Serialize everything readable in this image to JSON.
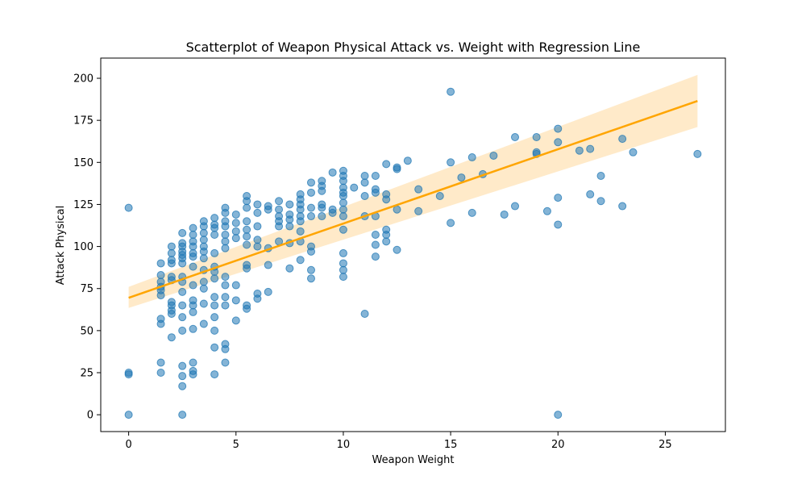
{
  "chart_data": {
    "type": "scatter",
    "title": "Scatterplot of Weapon Physical Attack vs. Weight with Regression Line",
    "xlabel": "Weapon Weight",
    "ylabel": "Attack Physical",
    "xlim": [
      -1.3,
      27.8
    ],
    "ylim": [
      -10,
      212
    ],
    "xticks": [
      0,
      5,
      10,
      15,
      20,
      25
    ],
    "yticks": [
      0,
      25,
      50,
      75,
      100,
      125,
      150,
      175,
      200
    ],
    "grid": false,
    "colors": {
      "points": "#1f77b4",
      "regression": "#ffa500",
      "band": "#ffe6bf"
    },
    "regression": {
      "x": [
        0,
        26.5
      ],
      "y": [
        69.5,
        186.5
      ],
      "ci_lower": [
        63.5,
        171
      ],
      "ci_upper": [
        76,
        202
      ]
    },
    "points": [
      [
        0,
        123
      ],
      [
        0,
        25
      ],
      [
        0,
        24
      ],
      [
        0,
        0
      ],
      [
        1.5,
        90
      ],
      [
        1.5,
        83
      ],
      [
        1.5,
        79
      ],
      [
        1.5,
        76
      ],
      [
        1.5,
        74
      ],
      [
        1.5,
        71
      ],
      [
        1.5,
        57
      ],
      [
        1.5,
        54
      ],
      [
        1.5,
        31
      ],
      [
        1.5,
        25
      ],
      [
        2,
        100
      ],
      [
        2,
        96
      ],
      [
        2,
        92
      ],
      [
        2,
        90
      ],
      [
        2,
        82
      ],
      [
        2,
        80
      ],
      [
        2,
        67
      ],
      [
        2,
        65
      ],
      [
        2,
        62
      ],
      [
        2,
        60
      ],
      [
        2,
        46
      ],
      [
        2.5,
        108
      ],
      [
        2.5,
        102
      ],
      [
        2.5,
        100
      ],
      [
        2.5,
        97
      ],
      [
        2.5,
        95
      ],
      [
        2.5,
        93
      ],
      [
        2.5,
        90
      ],
      [
        2.5,
        82
      ],
      [
        2.5,
        79
      ],
      [
        2.5,
        73
      ],
      [
        2.5,
        65
      ],
      [
        2.5,
        58
      ],
      [
        2.5,
        50
      ],
      [
        2.5,
        29
      ],
      [
        2.5,
        23
      ],
      [
        2.5,
        17
      ],
      [
        2.5,
        0
      ],
      [
        3,
        111
      ],
      [
        3,
        107
      ],
      [
        3,
        103
      ],
      [
        3,
        100
      ],
      [
        3,
        96
      ],
      [
        3,
        94
      ],
      [
        3,
        88
      ],
      [
        3,
        77
      ],
      [
        3,
        68
      ],
      [
        3,
        65
      ],
      [
        3,
        61
      ],
      [
        3,
        51
      ],
      [
        3,
        31
      ],
      [
        3,
        26
      ],
      [
        3,
        24
      ],
      [
        3.5,
        115
      ],
      [
        3.5,
        112
      ],
      [
        3.5,
        108
      ],
      [
        3.5,
        104
      ],
      [
        3.5,
        100
      ],
      [
        3.5,
        97
      ],
      [
        3.5,
        93
      ],
      [
        3.5,
        86
      ],
      [
        3.5,
        79
      ],
      [
        3.5,
        75
      ],
      [
        3.5,
        66
      ],
      [
        3.5,
        54
      ],
      [
        4,
        117
      ],
      [
        4,
        113
      ],
      [
        4,
        111
      ],
      [
        4,
        107
      ],
      [
        4,
        96
      ],
      [
        4,
        88
      ],
      [
        4,
        85
      ],
      [
        4,
        81
      ],
      [
        4,
        70
      ],
      [
        4,
        65
      ],
      [
        4,
        58
      ],
      [
        4,
        50
      ],
      [
        4,
        40
      ],
      [
        4,
        24
      ],
      [
        4.5,
        123
      ],
      [
        4.5,
        120
      ],
      [
        4.5,
        115
      ],
      [
        4.5,
        112
      ],
      [
        4.5,
        107
      ],
      [
        4.5,
        103
      ],
      [
        4.5,
        99
      ],
      [
        4.5,
        82
      ],
      [
        4.5,
        77
      ],
      [
        4.5,
        70
      ],
      [
        4.5,
        65
      ],
      [
        4.5,
        42
      ],
      [
        4.5,
        39
      ],
      [
        4.5,
        31
      ],
      [
        5,
        119
      ],
      [
        5,
        114
      ],
      [
        5,
        109
      ],
      [
        5,
        105
      ],
      [
        5,
        77
      ],
      [
        5,
        68
      ],
      [
        5,
        56
      ],
      [
        5.5,
        130
      ],
      [
        5.5,
        127
      ],
      [
        5.5,
        123
      ],
      [
        5.5,
        115
      ],
      [
        5.5,
        110
      ],
      [
        5.5,
        106
      ],
      [
        5.5,
        101
      ],
      [
        5.5,
        89
      ],
      [
        5.5,
        87
      ],
      [
        5.5,
        65
      ],
      [
        5.5,
        63
      ],
      [
        6,
        125
      ],
      [
        6,
        120
      ],
      [
        6,
        112
      ],
      [
        6,
        104
      ],
      [
        6,
        100
      ],
      [
        6,
        72
      ],
      [
        6,
        69
      ],
      [
        6.5,
        124
      ],
      [
        6.5,
        122
      ],
      [
        6.5,
        99
      ],
      [
        6.5,
        89
      ],
      [
        6.5,
        73
      ],
      [
        7,
        127
      ],
      [
        7,
        122
      ],
      [
        7,
        118
      ],
      [
        7,
        115
      ],
      [
        7,
        112
      ],
      [
        7,
        103
      ],
      [
        7.5,
        125
      ],
      [
        7.5,
        119
      ],
      [
        7.5,
        116
      ],
      [
        7.5,
        112
      ],
      [
        7.5,
        102
      ],
      [
        7.5,
        87
      ],
      [
        8,
        131
      ],
      [
        8,
        128
      ],
      [
        8,
        125
      ],
      [
        8,
        122
      ],
      [
        8,
        118
      ],
      [
        8,
        115
      ],
      [
        8,
        109
      ],
      [
        8,
        103
      ],
      [
        8,
        92
      ],
      [
        8.5,
        138
      ],
      [
        8.5,
        132
      ],
      [
        8.5,
        123
      ],
      [
        8.5,
        118
      ],
      [
        8.5,
        100
      ],
      [
        8.5,
        97
      ],
      [
        8.5,
        86
      ],
      [
        8.5,
        81
      ],
      [
        9,
        139
      ],
      [
        9,
        136
      ],
      [
        9,
        133
      ],
      [
        9,
        125
      ],
      [
        9,
        123
      ],
      [
        9,
        118
      ],
      [
        9.5,
        144
      ],
      [
        9.5,
        122
      ],
      [
        9.5,
        120
      ],
      [
        10,
        145
      ],
      [
        10,
        142
      ],
      [
        10,
        139
      ],
      [
        10,
        135
      ],
      [
        10,
        132
      ],
      [
        10,
        130
      ],
      [
        10,
        126
      ],
      [
        10,
        122
      ],
      [
        10,
        118
      ],
      [
        10,
        110
      ],
      [
        10,
        96
      ],
      [
        10,
        90
      ],
      [
        10,
        86
      ],
      [
        10,
        82
      ],
      [
        10.5,
        135
      ],
      [
        11,
        142
      ],
      [
        11,
        130
      ],
      [
        11,
        118
      ],
      [
        11,
        60
      ],
      [
        11.5,
        142
      ],
      [
        11,
        138
      ],
      [
        11.5,
        134
      ],
      [
        11.5,
        132
      ],
      [
        11.5,
        118
      ],
      [
        11.5,
        107
      ],
      [
        11.5,
        101
      ],
      [
        11.5,
        94
      ],
      [
        12,
        149
      ],
      [
        12,
        131
      ],
      [
        12,
        128
      ],
      [
        12,
        110
      ],
      [
        12,
        107
      ],
      [
        12,
        103
      ],
      [
        12.5,
        147
      ],
      [
        12.5,
        146
      ],
      [
        12.5,
        122
      ],
      [
        12.5,
        98
      ],
      [
        13,
        151
      ],
      [
        13.5,
        134
      ],
      [
        13.5,
        121
      ],
      [
        14.5,
        130
      ],
      [
        15,
        192
      ],
      [
        15,
        150
      ],
      [
        15,
        114
      ],
      [
        15.5,
        141
      ],
      [
        16,
        153
      ],
      [
        16,
        120
      ],
      [
        16.5,
        143
      ],
      [
        17,
        154
      ],
      [
        17.5,
        119
      ],
      [
        18,
        165
      ],
      [
        18,
        124
      ],
      [
        19,
        165
      ],
      [
        19,
        156
      ],
      [
        19,
        155
      ],
      [
        19.5,
        121
      ],
      [
        20,
        170
      ],
      [
        20,
        162
      ],
      [
        20,
        129
      ],
      [
        20,
        113
      ],
      [
        20,
        0
      ],
      [
        21,
        157
      ],
      [
        21.5,
        158
      ],
      [
        21.5,
        131
      ],
      [
        22,
        142
      ],
      [
        22,
        127
      ],
      [
        23,
        164
      ],
      [
        23,
        124
      ],
      [
        23.5,
        156
      ],
      [
        26.5,
        155
      ]
    ]
  }
}
